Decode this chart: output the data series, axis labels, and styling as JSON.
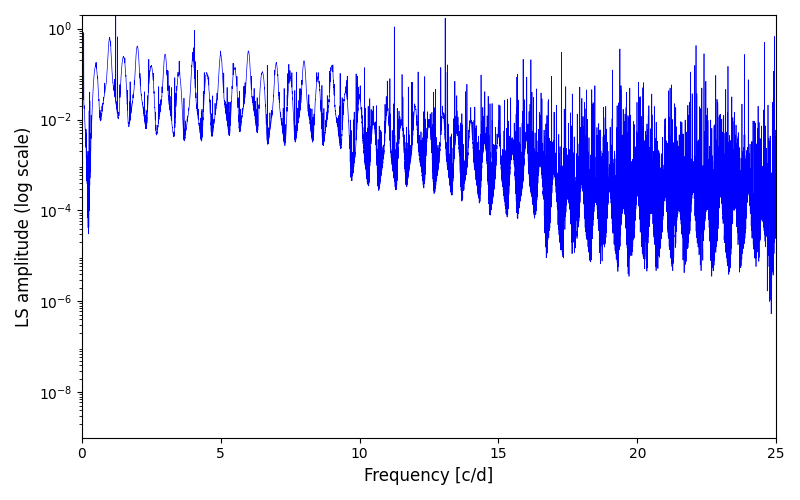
{
  "title": "",
  "xlabel": "Frequency [c/d]",
  "ylabel": "LS amplitude (log scale)",
  "xlim": [
    0,
    25
  ],
  "ylim": [
    1e-09,
    2.0
  ],
  "line_color": "#0000ff",
  "line_width": 0.5,
  "yscale": "log",
  "yticks": [
    1e-08,
    1e-06,
    0.0001,
    0.01,
    1.0
  ],
  "xticks": [
    0,
    5,
    10,
    15,
    20,
    25
  ],
  "background_color": "#ffffff",
  "figsize": [
    8.0,
    5.0
  ],
  "dpi": 100,
  "seed": 12345,
  "n_points": 8000,
  "freq_max": 25.0
}
